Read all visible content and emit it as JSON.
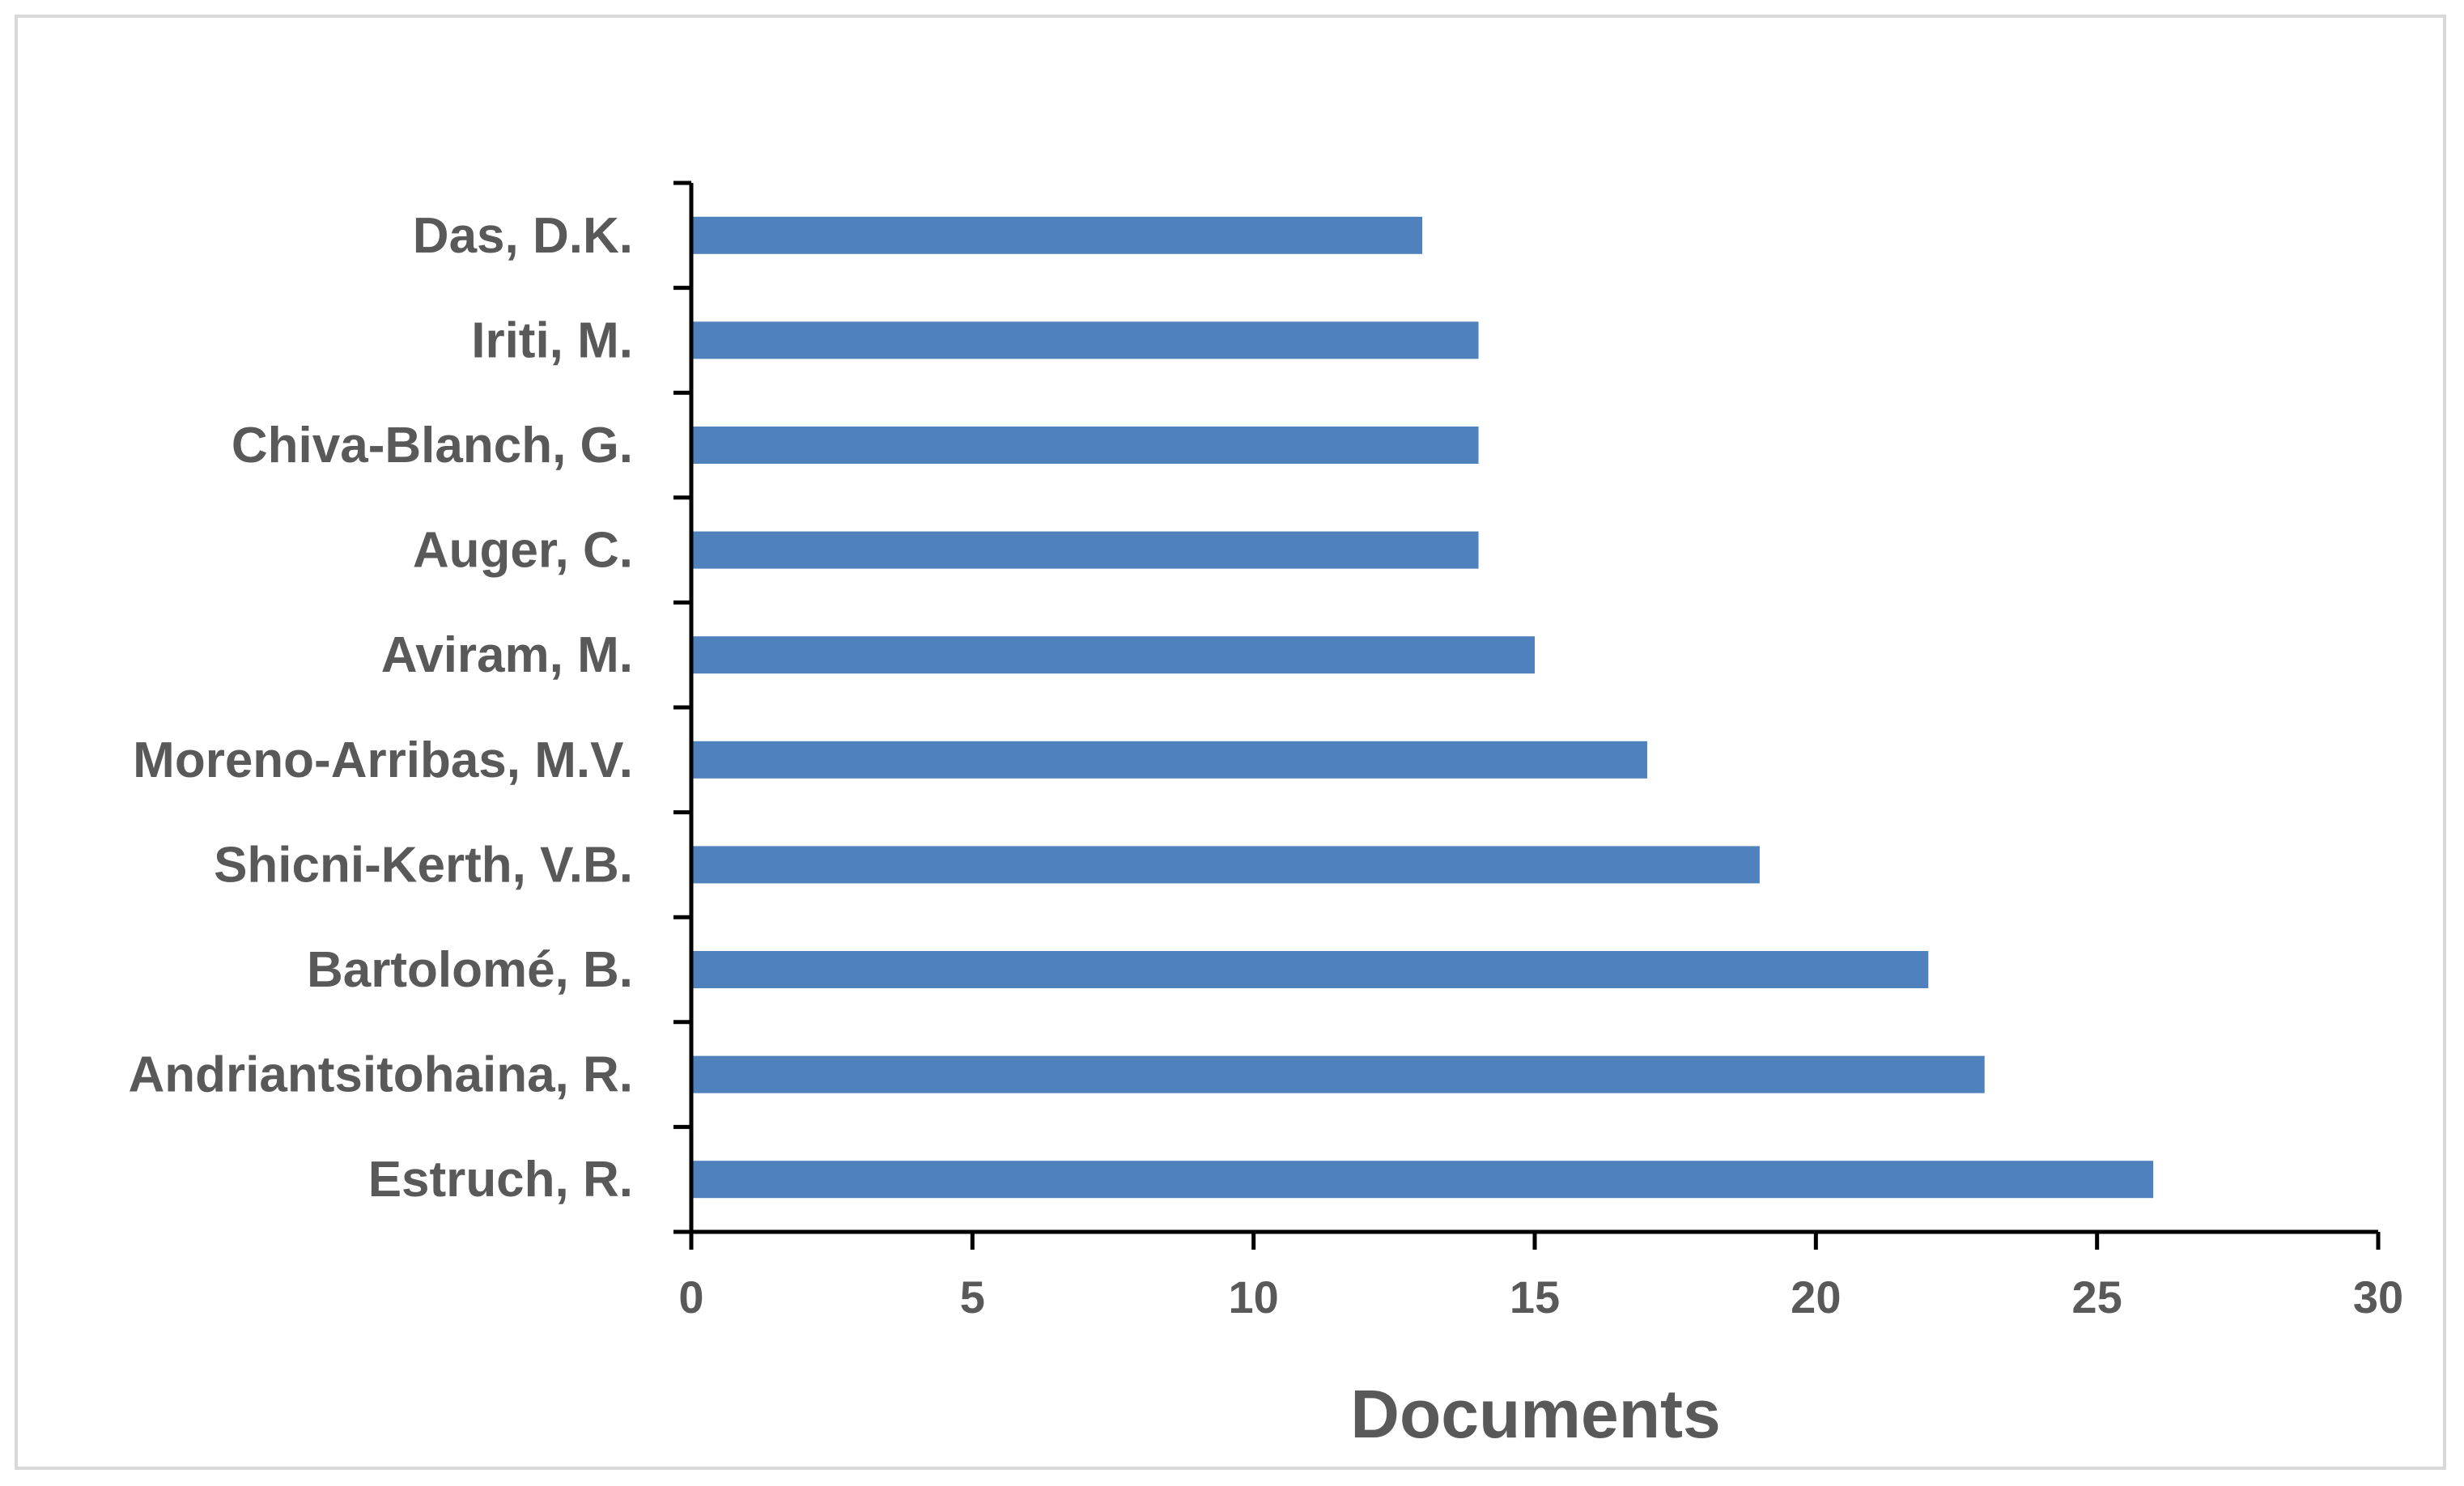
{
  "chart_data": {
    "type": "bar",
    "orientation": "horizontal",
    "categories": [
      "Estruch, R.",
      "Andriantsitohaina, R.",
      "Bartolomé, B.",
      "Shicni-Kerth, V.B.",
      "Moreno-Arribas, M.V.",
      "Aviram, M.",
      "Auger, C.",
      "Chiva-Blanch, G.",
      "Iriti, M.",
      "Das, D.K."
    ],
    "values": [
      26,
      23,
      22,
      19,
      17,
      15,
      14,
      14,
      14,
      13
    ],
    "xlabel": "Documents",
    "ylabel": "",
    "xlim": [
      0,
      30
    ],
    "x_ticks": [
      "0",
      "5",
      "10",
      "15",
      "20",
      "25",
      "30"
    ],
    "grid": false,
    "legend": "none",
    "bar_color": "#4f81bd",
    "text_color": "#595959",
    "axis_color": "#000000"
  }
}
